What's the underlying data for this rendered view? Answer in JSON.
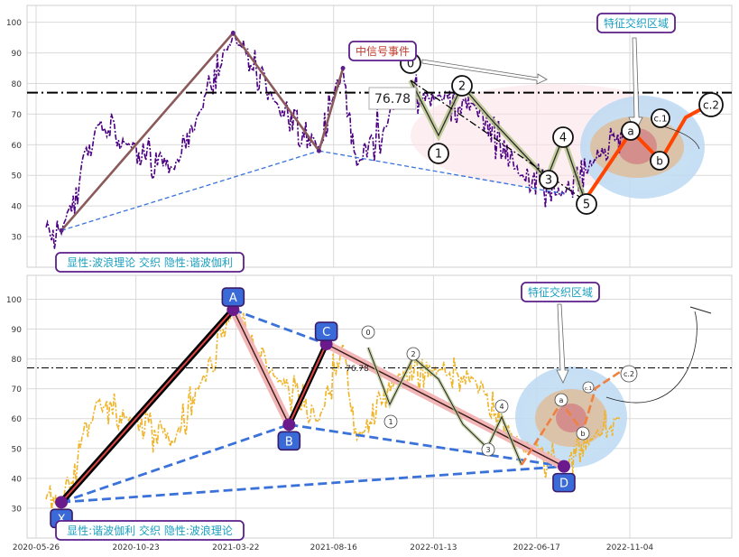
{
  "chart_data": {
    "type": "line",
    "y_ticks": [
      30,
      40,
      50,
      60,
      70,
      80,
      90,
      100
    ],
    "ylim": [
      20,
      108
    ],
    "x_tick_labels": [
      "2020-05-26",
      "2020-10-23",
      "2021-03-22",
      "2021-08-16",
      "2022-01-13",
      "2022-06-17",
      "2022-11-04"
    ],
    "grid": true,
    "reference_line": {
      "value": 77,
      "label": "76.78"
    },
    "colors": {
      "top_price": "#4b0082",
      "bottom_price": "#f0b429",
      "trend": "#8b5a5a",
      "dashed": "#3a72d9",
      "wave_fill": "#b7c48a",
      "projection": "#ff4500",
      "label_text": "#1a9fc0",
      "label_border": "#5b1f8a",
      "node_box": "#3a6ad8"
    },
    "panels": [
      {
        "id": "top",
        "annotation": "显性:波浪理论 交织 隐性:谐波伽利",
        "event_label": "中信号事件",
        "zone_label": "特征交织区域",
        "ref_label": "76.78",
        "wave_labels": [
          "0",
          "1",
          "2",
          "3",
          "4",
          "5",
          "a",
          "b",
          "c.1",
          "c.2"
        ],
        "pivots": [
          {
            "d": "2020-07-03",
            "v": 32
          },
          {
            "d": "2021-03-18",
            "v": 96.5
          },
          {
            "d": "2021-07-25",
            "v": 58
          },
          {
            "d": "2021-08-30",
            "v": 85
          },
          {
            "d": "2022-07-28",
            "v": 44
          }
        ]
      },
      {
        "id": "bottom",
        "annotation": "显性:谐波伽利 交织 隐性:波浪理论",
        "zone_label": "特征交织区域",
        "ref_label": "76.78",
        "harmonic_points": [
          {
            "name": "X",
            "d": "2020-07-03",
            "v": 32
          },
          {
            "name": "A",
            "d": "2021-03-18",
            "v": 96.5
          },
          {
            "name": "B",
            "d": "2021-06-10",
            "v": 58
          },
          {
            "name": "C",
            "d": "2021-08-05",
            "v": 85
          },
          {
            "name": "D",
            "d": "2022-07-28",
            "v": 44
          }
        ],
        "wave_labels": [
          "0",
          "1",
          "2",
          "3",
          "4",
          "a",
          "b",
          "c.1",
          "c.2"
        ]
      }
    ]
  }
}
